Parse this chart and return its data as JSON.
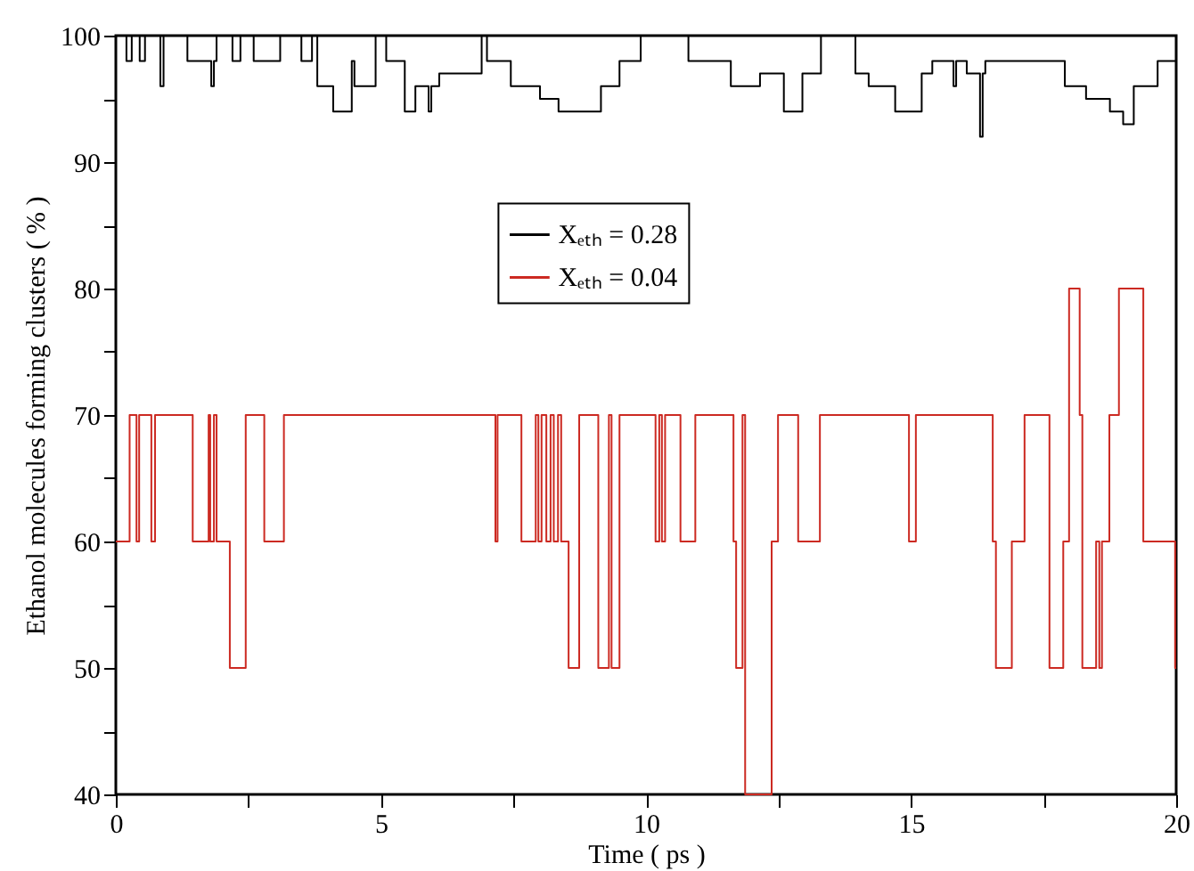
{
  "chart_data": {
    "type": "step",
    "xlabel": "Time ( ps )",
    "ylabel": "Ethanol molecules forming clusters ( % )",
    "xlim": [
      0,
      20
    ],
    "xticks": [
      0,
      {
        "value": 2.5,
        "label": null
      },
      5,
      {
        "value": 7.5,
        "label": null
      },
      10,
      {
        "value": 12.5,
        "label": null
      },
      15,
      {
        "value": 17.5,
        "label": null
      },
      20
    ],
    "ylim": [
      40,
      100
    ],
    "yticks": [
      40,
      {
        "value": 45,
        "label": null
      },
      50,
      {
        "value": 55,
        "label": null
      },
      60,
      {
        "value": 65,
        "label": null
      },
      70,
      {
        "value": 75,
        "label": null
      },
      80,
      {
        "value": 85,
        "label": null
      },
      90,
      {
        "value": 95,
        "label": null
      },
      100
    ],
    "legend": "top",
    "grid": false,
    "series": [
      {
        "name": "Xₑₜₕ = 0.28",
        "color": "#000000",
        "x": [
          0,
          0.2,
          0.3,
          0.45,
          0.55,
          0.84,
          0.9,
          1.35,
          1.8,
          1.85,
          1.9,
          2.2,
          2.35,
          2.6,
          3.1,
          3.5,
          3.7,
          3.8,
          4.1,
          4.45,
          4.5,
          4.9,
          5.1,
          5.45,
          5.65,
          5.9,
          5.95,
          6.1,
          6.9,
          7.0,
          7.45,
          8.0,
          8.35,
          9.15,
          9.5,
          9.9,
          10.8,
          11.6,
          12.15,
          12.6,
          12.95,
          13.3,
          13.95,
          14.2,
          14.7,
          15.2,
          15.4,
          15.8,
          15.85,
          16.05,
          16.3,
          16.35,
          16.4,
          17.65,
          17.9,
          18.3,
          18.75,
          19.0,
          19.2,
          19.65,
          20
        ],
        "values": [
          100,
          98,
          100,
          98,
          100,
          96,
          100,
          98,
          96,
          98,
          100,
          98,
          100,
          98,
          100,
          98,
          100,
          96,
          94,
          98,
          96,
          100,
          98,
          94,
          96,
          94,
          96,
          97,
          100,
          98,
          96,
          95,
          94,
          96,
          98,
          100,
          98,
          96,
          97,
          94,
          97,
          100,
          97,
          96,
          94,
          97,
          98,
          96,
          98,
          97,
          92,
          97,
          98,
          98,
          96,
          95,
          94,
          93,
          96,
          98,
          98
        ]
      },
      {
        "name": "Xₑₜₕ = 0.04",
        "color": "#cc2a22",
        "x": [
          0,
          0.26,
          0.39,
          0.44,
          0.67,
          0.74,
          1.45,
          1.75,
          1.78,
          1.85,
          1.9,
          2.15,
          2.45,
          2.8,
          3.17,
          7.16,
          7.2,
          7.65,
          7.92,
          7.97,
          8.03,
          8.12,
          8.2,
          8.26,
          8.34,
          8.4,
          8.54,
          8.74,
          9.1,
          9.3,
          9.35,
          9.5,
          10.18,
          10.25,
          10.3,
          10.36,
          10.65,
          10.93,
          11.65,
          11.7,
          11.82,
          11.87,
          12.37,
          12.49,
          12.87,
          13.28,
          14.96,
          15.09,
          16.54,
          16.6,
          16.9,
          17.14,
          17.61,
          17.87,
          17.98,
          18.18,
          18.23,
          18.49,
          18.55,
          18.6,
          18.74,
          18.92,
          19.38,
          19.98,
          20
        ],
        "values": [
          60,
          70,
          60,
          70,
          60,
          70,
          60,
          70,
          60,
          70,
          60,
          50,
          70,
          60,
          70,
          60,
          70,
          60,
          70,
          60,
          70,
          60,
          70,
          60,
          70,
          60,
          50,
          70,
          50,
          70,
          50,
          70,
          60,
          70,
          60,
          70,
          60,
          70,
          60,
          50,
          70,
          40,
          60,
          70,
          60,
          70,
          60,
          70,
          60,
          50,
          60,
          70,
          50,
          60,
          80,
          70,
          50,
          60,
          50,
          60,
          70,
          80,
          60,
          50,
          50
        ]
      }
    ]
  }
}
